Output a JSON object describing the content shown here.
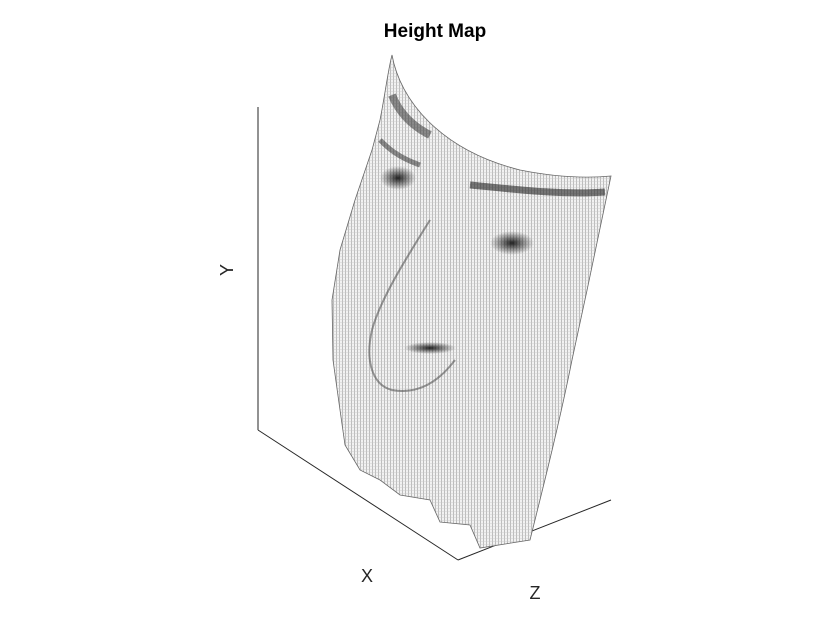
{
  "chart_data": {
    "type": "surface",
    "title": "Height Map",
    "xlabel": "X",
    "ylabel": "Y",
    "zlabel": "Z",
    "colormap": "gray"
  }
}
